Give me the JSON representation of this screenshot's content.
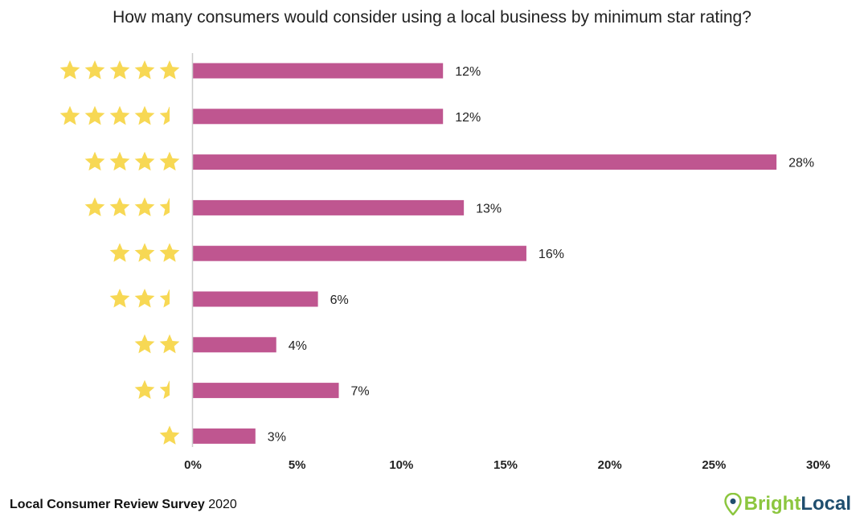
{
  "colors": {
    "bar": "#bf5690",
    "star": "#f7d854",
    "axis": "#cccccc",
    "brand_green": "#8cc63f",
    "brand_navy": "#1f4e6e"
  },
  "chart_data": {
    "type": "bar",
    "orientation": "horizontal",
    "title": "How many consumers would consider using a local business by minimum star rating?",
    "xlabel": "",
    "ylabel": "",
    "xlim": [
      0,
      30
    ],
    "x_ticks": [
      "0%",
      "5%",
      "10%",
      "15%",
      "20%",
      "25%",
      "30%"
    ],
    "categories": [
      5,
      4.5,
      4,
      3.5,
      3,
      2.5,
      2,
      1.5,
      1
    ],
    "values": [
      12,
      12,
      28,
      13,
      16,
      6,
      4,
      7,
      3
    ],
    "data_labels": [
      "12%",
      "12%",
      "28%",
      "13%",
      "16%",
      "6%",
      "4%",
      "7%",
      "3%"
    ],
    "category_icons": "star-rating",
    "grid": false,
    "legend": "none"
  },
  "footer": {
    "survey_name": "Local Consumer Review Survey",
    "survey_year": "2020",
    "brand_bright": "Bright",
    "brand_local": "Local",
    "brand_icon": "map-pin-icon"
  }
}
